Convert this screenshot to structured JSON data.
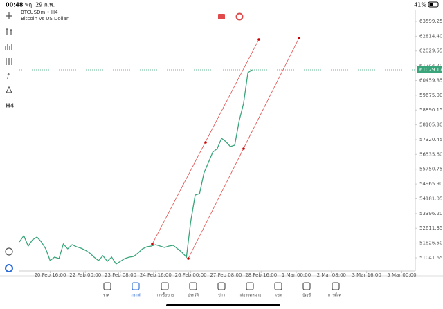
{
  "status_bar": {
    "time": "00:48",
    "date": "พฤ. 29 ก.พ.",
    "battery": "41%"
  },
  "chart": {
    "type": "line",
    "symbol": "BTCUSDm • H4",
    "description": "Bitcoin vs US Dollar",
    "timeframe": "H4",
    "color": "#3aa57a",
    "ylim": [
      50417,
      64223
    ],
    "yticks": [
      63599.25,
      {
        "value": 62814.4,
        "label": "62814.40"
      },
      62029.55,
      {
        "value": 61244.7,
        "label": "61244.70"
      },
      60459.85,
      {
        "value": 59675.0,
        "label": "59675.00"
      },
      58890.15,
      {
        "value": 58105.3,
        "label": "58105.30"
      },
      57320.45,
      {
        "value": 56535.6,
        "label": "56535.60"
      },
      55750.75,
      {
        "value": 54965.9,
        "label": "54965.90"
      },
      54181.05,
      {
        "value": 53396.2,
        "label": "53396.20"
      },
      52611.35,
      {
        "value": 51826.5,
        "label": "51826.50"
      },
      51041.65
    ],
    "current_price": 61029.17,
    "x_labels": [
      "20 Feb 16:00",
      "22 Feb 00:00",
      "23 Feb 08:00",
      "24 Feb 16:00",
      "26 Feb 00:00",
      "27 Feb 08:00",
      "28 Feb 16:00",
      "1 Mar 00:00",
      "2 Mar 08:00",
      "3 Mar 16:00",
      "5 Mar 00:00"
    ],
    "values": [
      51886,
      52216,
      51665,
      51995,
      52142,
      51886,
      51518,
      50894,
      51077,
      51004,
      51775,
      51518,
      51738,
      51628,
      51555,
      51445,
      51298,
      51077,
      50894,
      51151,
      50857,
      51077,
      50710,
      50857,
      51004,
      51077,
      51114,
      51298,
      51518,
      51628,
      51665,
      51738,
      51665,
      51592,
      51665,
      51702,
      51518,
      51335,
      51077,
      52987,
      54382,
      54456,
      55557,
      56108,
      56659,
      56843,
      57393,
      57210,
      56953,
      57026,
      58311,
      59229,
      60882,
      61029
    ]
  },
  "nav": [
    "ราคา",
    "กราฟ",
    "การซื้อขาย",
    "ประวัติ",
    "ข่าว",
    "กล่องจดหมาย",
    "แชท",
    "บัญชี",
    "การตั้งค่า"
  ]
}
